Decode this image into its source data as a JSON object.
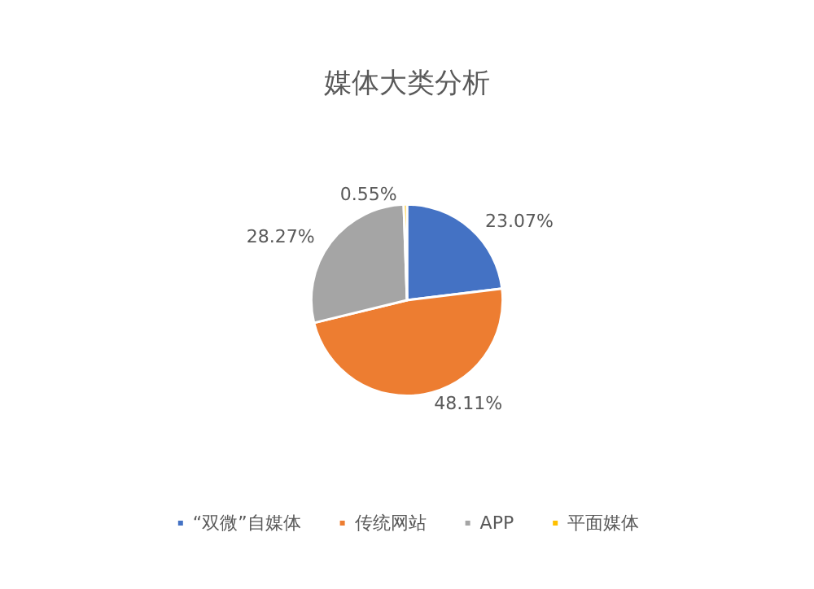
{
  "chart_data": {
    "type": "pie",
    "title": "媒体大类分析",
    "categories": [
      "“双微”自媒体",
      "传统网站",
      "APP",
      "平面媒体"
    ],
    "values": [
      23.07,
      48.11,
      28.27,
      0.55
    ],
    "value_labels": [
      "23.07%",
      "48.11%",
      "28.27%",
      "0.55%"
    ],
    "colors": [
      "#4472c4",
      "#ed7d31",
      "#a5a5a5",
      "#ffc000"
    ],
    "legend": "bottom"
  }
}
